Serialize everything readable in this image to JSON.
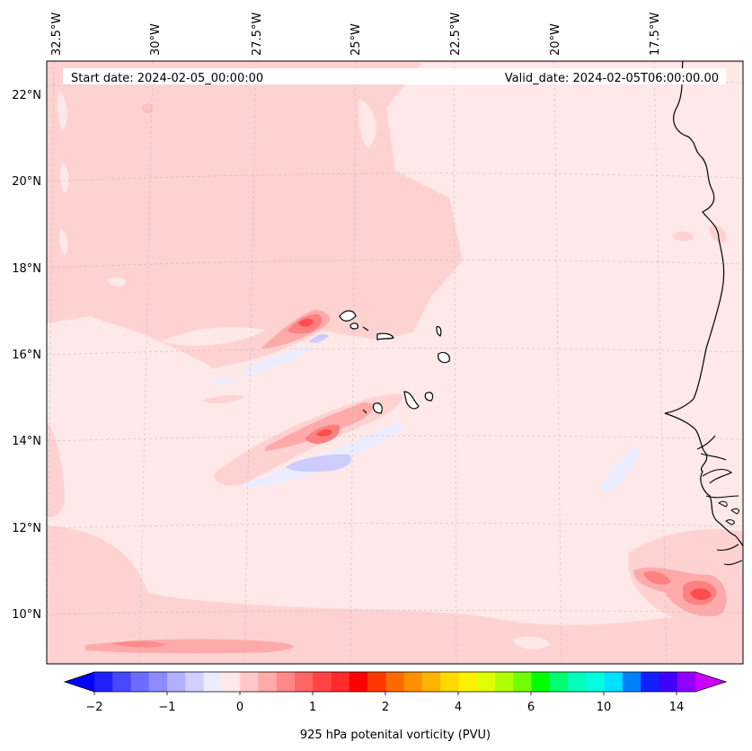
{
  "header": {
    "start_date": "Start date: 2024-02-05_00:00:00",
    "valid_date": "Valid_date: 2024-02-05T06:00:00.00"
  },
  "axes": {
    "lon_labels": [
      "32.5°W",
      "30°W",
      "27.5°W",
      "25°W",
      "22.5°W",
      "20°W",
      "17.5°W"
    ],
    "lat_labels": [
      "22°N",
      "20°N",
      "18°N",
      "16°N",
      "14°N",
      "12°N",
      "10°N"
    ]
  },
  "colorbar": {
    "label": "925 hPa potenital vorticity (PVU)",
    "tick_labels": [
      "−2",
      "−1",
      "0",
      "1",
      "2",
      "4",
      "6",
      "10",
      "14"
    ],
    "colors": [
      "#2020ff",
      "#4848ff",
      "#6c6cff",
      "#8c8cff",
      "#b0b0ff",
      "#d0d0ff",
      "#ececff",
      "#ffe8e8",
      "#ffc8c8",
      "#ffaaaa",
      "#ff8888",
      "#ff6666",
      "#ff4444",
      "#ff2a2a",
      "#ff0000",
      "#ff3800",
      "#ff6a00",
      "#ff9000",
      "#ffb400",
      "#ffd800",
      "#fff000",
      "#e0ff00",
      "#b0ff00",
      "#70ff00",
      "#00ff00",
      "#00ff70",
      "#00ffb8",
      "#00ffe0",
      "#00e0ff",
      "#0080ff",
      "#1020ff",
      "#4000ff",
      "#9000ff"
    ],
    "under_color": "#0000ff",
    "over_color": "#cc00ff"
  },
  "map_colors": {
    "background": "#ffe8e8",
    "light": "#ffd2d2",
    "medium": "#ffaaaa",
    "strong": "#ff7070",
    "peak": "#ff4c4c",
    "negative_faint": "#ececff",
    "negative": "#d0d0ff",
    "coast": "#000000"
  }
}
